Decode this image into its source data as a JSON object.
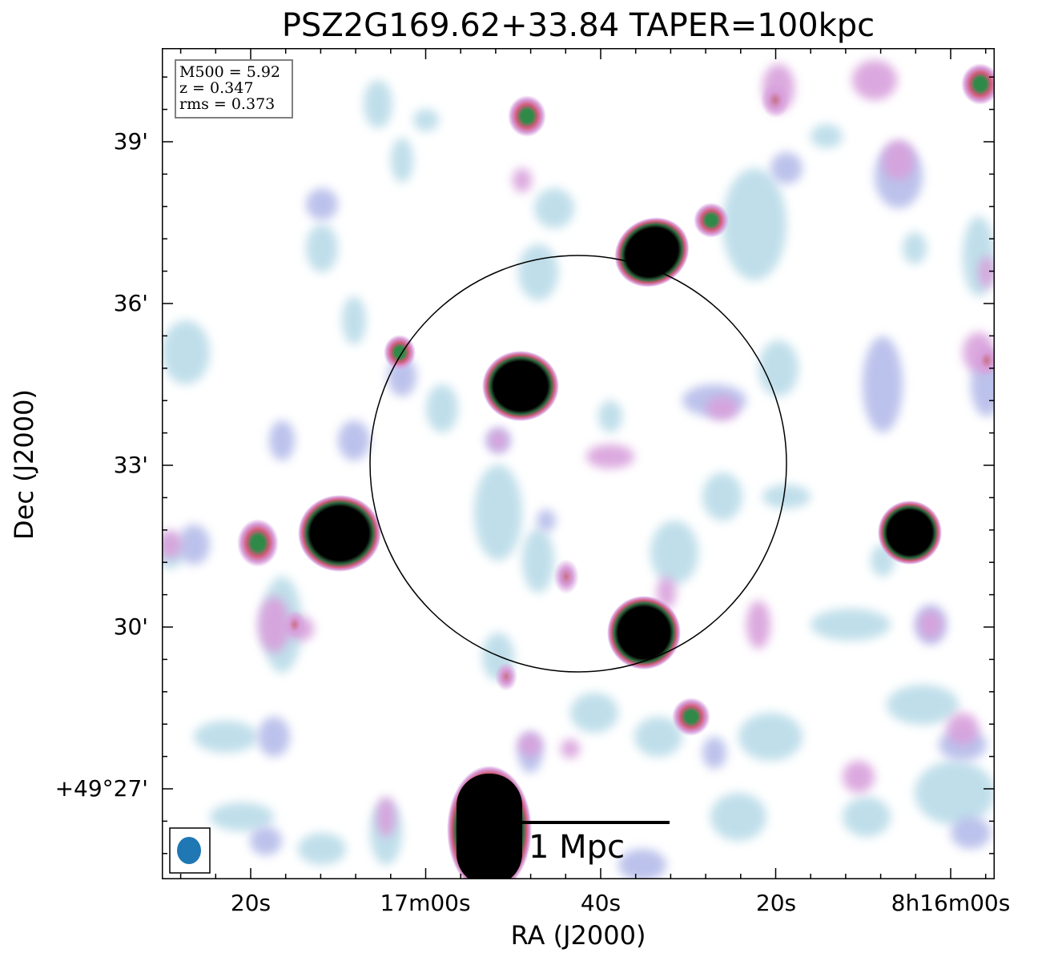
{
  "title": "PSZ2G169.62+33.84 TAPER=100kpc",
  "axes": {
    "xlabel": "RA (J2000)",
    "ylabel": "Dec (J2000)",
    "x_ticks": [
      "20s",
      "17m00s",
      "40s",
      "20s",
      "8h16m00s"
    ],
    "y_ticks": [
      "39'",
      "36'",
      "33'",
      "30'",
      "+49°27'"
    ]
  },
  "info": {
    "mass": "M500 = 5.92",
    "redshift": "z = 0.347",
    "rms": "rms = 0.373"
  },
  "scale_bar": {
    "label": "1 Mpc"
  },
  "colors": {
    "faint": "#b9dbe8",
    "low": "#b0b8e8",
    "mid": "#d8a0dc",
    "high": "#d05a78",
    "peak": "#2f8a48",
    "saturated": "#000000",
    "beam": "#1f77b4",
    "circle": "#000000"
  }
}
